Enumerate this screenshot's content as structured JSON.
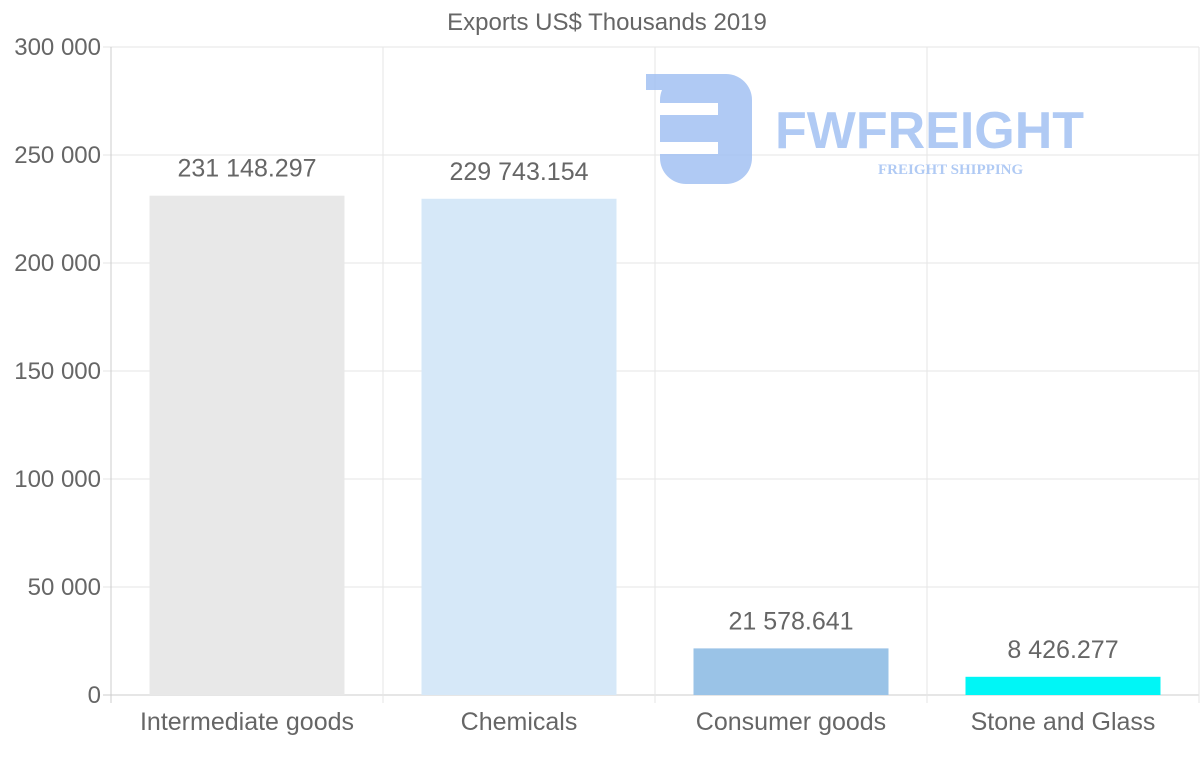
{
  "chart_data": {
    "type": "bar",
    "title": "Exports US$ Thousands 2019",
    "categories": [
      "Intermediate goods",
      "Chemicals",
      "Consumer goods",
      "Stone and Glass"
    ],
    "values": [
      231148.297,
      229743.154,
      21578.641,
      8426.277
    ],
    "value_labels": [
      "231 148.297",
      "229 743.154",
      "21 578.641",
      "8 426.277"
    ],
    "bar_colors": [
      "#e8e8e8",
      "#d6e8f8",
      "#9ac3e7",
      "#00f6f6"
    ],
    "ylim": [
      0,
      300000
    ],
    "yticks": [
      0,
      50000,
      100000,
      150000,
      200000,
      250000,
      300000
    ],
    "ytick_labels": [
      "0",
      "50 000",
      "100 000",
      "150 000",
      "200 000",
      "250 000",
      "300 000"
    ],
    "xlabel": "",
    "ylabel": "",
    "grid": true
  },
  "watermark": {
    "brand": "FWFREIGHT",
    "tagline": "FREIGHT SHIPPING",
    "color": "#9dbef2"
  }
}
